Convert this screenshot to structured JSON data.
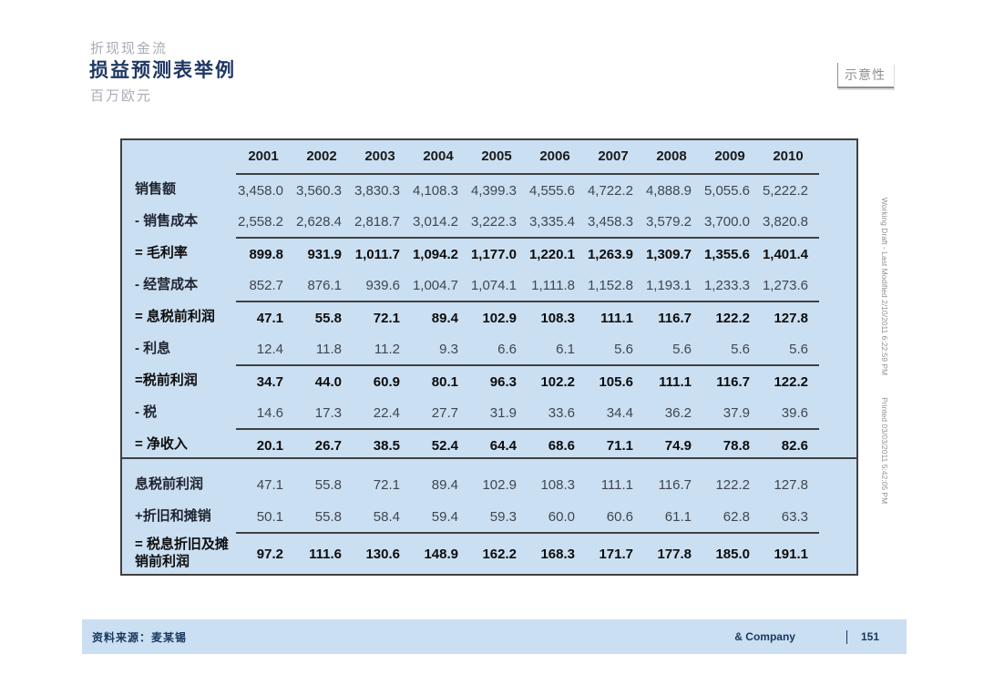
{
  "header": {
    "kicker": "折现现金流",
    "title": "损益预测表举例",
    "subtitle": "百万欧元",
    "stamp": "示意性"
  },
  "income_table": {
    "years": [
      "2001",
      "2002",
      "2003",
      "2004",
      "2005",
      "2006",
      "2007",
      "2008",
      "2009",
      "2010"
    ],
    "rows": [
      {
        "label": "销售额",
        "subtotal": false,
        "values": [
          "3,458.0",
          "3,560.3",
          "3,830.3",
          "4,108.3",
          "4,399.3",
          "4,555.6",
          "4,722.2",
          "4,888.9",
          "5,055.6",
          "5,222.2"
        ]
      },
      {
        "label": "- 销售成本",
        "subtotal": false,
        "values": [
          "2,558.2",
          "2,628.4",
          "2,818.7",
          "3,014.2",
          "3,222.3",
          "3,335.4",
          "3,458.3",
          "3,579.2",
          "3,700.0",
          "3,820.8"
        ]
      },
      {
        "label": "= 毛利率",
        "subtotal": true,
        "values": [
          "899.8",
          "931.9",
          "1,011.7",
          "1,094.2",
          "1,177.0",
          "1,220.1",
          "1,263.9",
          "1,309.7",
          "1,355.6",
          "1,401.4"
        ]
      },
      {
        "label": "- 经营成本",
        "subtotal": false,
        "values": [
          "852.7",
          "876.1",
          "939.6",
          "1,004.7",
          "1,074.1",
          "1,111.8",
          "1,152.8",
          "1,193.1",
          "1,233.3",
          "1,273.6"
        ]
      },
      {
        "label": "= 息税前利润",
        "subtotal": true,
        "values": [
          "47.1",
          "55.8",
          "72.1",
          "89.4",
          "102.9",
          "108.3",
          "111.1",
          "116.7",
          "122.2",
          "127.8"
        ]
      },
      {
        "label": "- 利息",
        "subtotal": false,
        "values": [
          "12.4",
          "11.8",
          "11.2",
          "9.3",
          "6.6",
          "6.1",
          "5.6",
          "5.6",
          "5.6",
          "5.6"
        ]
      },
      {
        "label": "=税前利润",
        "subtotal": true,
        "values": [
          "34.7",
          "44.0",
          "60.9",
          "80.1",
          "96.3",
          "102.2",
          "105.6",
          "111.1",
          "116.7",
          "122.2"
        ]
      },
      {
        "label": "- 税",
        "subtotal": false,
        "values": [
          "14.6",
          "17.3",
          "22.4",
          "27.7",
          "31.9",
          "33.6",
          "34.4",
          "36.2",
          "37.9",
          "39.6"
        ]
      },
      {
        "label": "= 净收入",
        "subtotal": true,
        "values": [
          "20.1",
          "26.7",
          "38.5",
          "52.4",
          "64.4",
          "68.6",
          "71.1",
          "74.9",
          "78.8",
          "82.6"
        ]
      }
    ]
  },
  "ebitda_table": {
    "rows": [
      {
        "label": "息税前利润",
        "subtotal": false,
        "values": [
          "47.1",
          "55.8",
          "72.1",
          "89.4",
          "102.9",
          "108.3",
          "111.1",
          "116.7",
          "122.2",
          "127.8"
        ]
      },
      {
        "label": "+折旧和摊销",
        "subtotal": false,
        "values": [
          "50.1",
          "55.8",
          "58.4",
          "59.4",
          "59.3",
          "60.0",
          "60.6",
          "61.1",
          "62.8",
          "63.3"
        ]
      },
      {
        "label": "= 税息折旧及摊销前利润",
        "subtotal": true,
        "values": [
          "97.2",
          "111.6",
          "130.6",
          "148.9",
          "162.2",
          "168.3",
          "171.7",
          "177.8",
          "185.0",
          "191.1"
        ]
      }
    ]
  },
  "footer": {
    "source": "资料来源：麦某锡",
    "brand": "& Company",
    "page": "151"
  },
  "side_note": {
    "line1": "Working Draft - Last Modified 2/10/2011 6:22:59 PM",
    "line2": "Printed 03/03/2011 5:42:05 PM"
  },
  "colors": {
    "table_bg": "#cbdff2",
    "border": "#404040",
    "title": "#1f3864",
    "muted_gray": "#a8acb4",
    "footer_text": "#17375d"
  }
}
